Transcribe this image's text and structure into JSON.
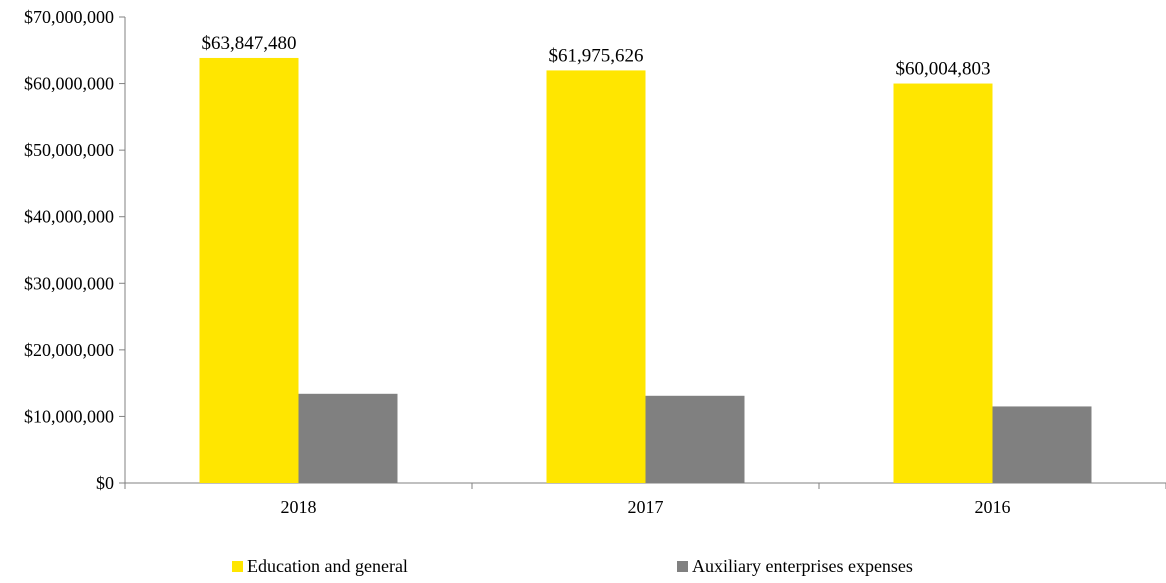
{
  "chart_data": {
    "type": "bar",
    "categories": [
      "2018",
      "2017",
      "2016"
    ],
    "series": [
      {
        "name": "Education and general",
        "color": "#FFE600",
        "values": [
          63847480,
          61975626,
          60004803
        ],
        "data_labels": [
          "$63,847,480",
          "$61,975,626",
          "$60,004,803"
        ]
      },
      {
        "name": "Auxiliary enterprises expenses",
        "color": "#808080",
        "values": [
          13400000,
          13100000,
          11500000
        ],
        "data_labels": []
      }
    ],
    "ylim": [
      0,
      70000000
    ],
    "y_ticks": [
      0,
      10000000,
      20000000,
      30000000,
      40000000,
      50000000,
      60000000,
      70000000
    ],
    "y_tick_labels": [
      "$0",
      "$10,000,000",
      "$20,000,000",
      "$30,000,000",
      "$40,000,000",
      "$50,000,000",
      "$60,000,000",
      "$70,000,000"
    ],
    "grid": false,
    "legend_position": "bottom"
  }
}
